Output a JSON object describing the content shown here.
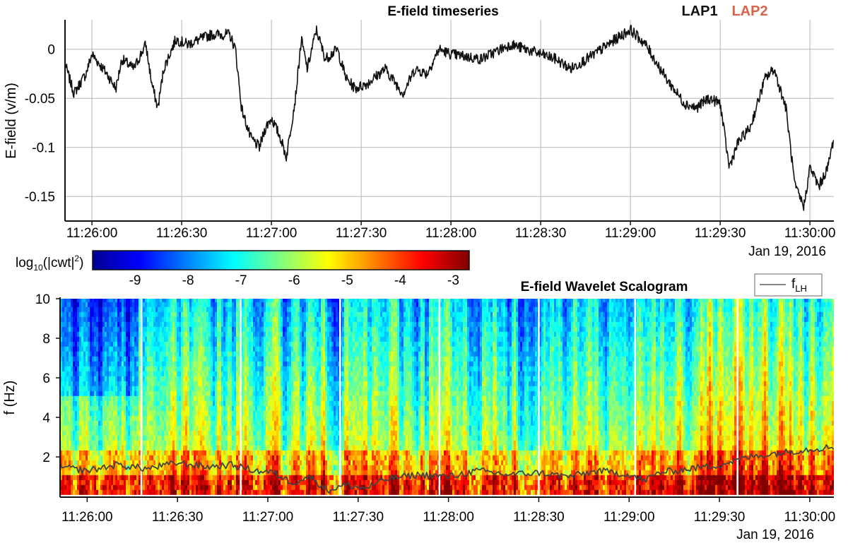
{
  "chart_data": [
    {
      "type": "line",
      "title": "E-field timeseries",
      "xlabel": "",
      "ylabel": "E-field (v/m)",
      "x_ticks": [
        "11:26:00",
        "11:26:30",
        "11:27:00",
        "11:27:30",
        "11:28:00",
        "11:28:30",
        "11:29:00",
        "11:29:30",
        "11:30:00"
      ],
      "y_ticks": [
        "0",
        "-0.05",
        "-0.1",
        "-0.15"
      ],
      "y_tick_values": [
        0,
        -0.05,
        -0.1,
        -0.15
      ],
      "ylim": [
        -0.175,
        0.03
      ],
      "x_range": [
        "11:25:51",
        "11:30:08"
      ],
      "date_label": "Jan 19, 2016",
      "grid": true,
      "legend": [
        "LAP1",
        "LAP2"
      ],
      "legend_colors": [
        "#111111",
        "#d9624a"
      ],
      "legend_position": "top-right",
      "series": [
        {
          "name": "LAP1",
          "color": "#111111",
          "x": [
            "11:25:51",
            "11:25:54",
            "11:25:58",
            "11:26:00",
            "11:26:05",
            "11:26:08",
            "11:26:10",
            "11:26:14",
            "11:26:18",
            "11:26:20",
            "11:26:22",
            "11:26:24",
            "11:26:28",
            "11:26:32",
            "11:26:40",
            "11:26:46",
            "11:26:48",
            "11:26:50",
            "11:26:53",
            "11:26:56",
            "11:26:58",
            "11:27:00",
            "11:27:03",
            "11:27:05",
            "11:27:08",
            "11:27:10",
            "11:27:12",
            "11:27:15",
            "11:27:18",
            "11:27:22",
            "11:27:25",
            "11:27:28",
            "11:27:32",
            "11:27:38",
            "11:27:44",
            "11:27:48",
            "11:27:52",
            "11:27:56",
            "11:28:00",
            "11:28:10",
            "11:28:20",
            "11:28:30",
            "11:28:35",
            "11:28:40",
            "11:28:48",
            "11:28:55",
            "11:29:00",
            "11:29:05",
            "11:29:12",
            "11:29:18",
            "11:29:22",
            "11:29:26",
            "11:29:30",
            "11:29:33",
            "11:29:36",
            "11:29:40",
            "11:29:45",
            "11:29:48",
            "11:29:52",
            "11:29:55",
            "11:29:58",
            "11:30:00",
            "11:30:03",
            "11:30:06",
            "11:30:08"
          ],
          "values": [
            -0.015,
            -0.045,
            -0.025,
            -0.005,
            -0.025,
            -0.04,
            -0.01,
            -0.02,
            0.005,
            -0.035,
            -0.06,
            -0.02,
            0.01,
            0.005,
            0.015,
            0.015,
            0.0,
            -0.06,
            -0.09,
            -0.1,
            -0.08,
            -0.07,
            -0.09,
            -0.11,
            -0.05,
            0.01,
            -0.02,
            0.02,
            -0.01,
            0.0,
            -0.03,
            -0.04,
            -0.035,
            -0.02,
            -0.045,
            -0.02,
            -0.025,
            0.0,
            -0.005,
            -0.01,
            0.005,
            -0.005,
            -0.01,
            -0.02,
            -0.005,
            0.01,
            0.02,
            0.005,
            -0.03,
            -0.055,
            -0.06,
            -0.05,
            -0.055,
            -0.12,
            -0.095,
            -0.08,
            -0.03,
            -0.02,
            -0.06,
            -0.14,
            -0.16,
            -0.12,
            -0.14,
            -0.12,
            -0.09
          ]
        }
      ]
    },
    {
      "type": "heatmap",
      "title": "E-field Wavelet Scalogram",
      "xlabel": "",
      "ylabel": "f (Hz)",
      "x_ticks": [
        "11:26:00",
        "11:26:30",
        "11:27:00",
        "11:27:30",
        "11:28:00",
        "11:28:30",
        "11:29:00",
        "11:29:30",
        "11:30:00"
      ],
      "y_ticks": [
        "10",
        "8",
        "6",
        "4",
        "2"
      ],
      "y_tick_values": [
        10,
        8,
        6,
        4,
        2
      ],
      "ylim": [
        0,
        10
      ],
      "x_range": [
        "11:25:51",
        "11:30:08"
      ],
      "date_label": "Jan 19, 2016",
      "colorbar": {
        "label_main": "log",
        "label_sub": "10",
        "label_rest": "(|cwt|",
        "label_sup": "2",
        "label_end": ")",
        "range": [
          -9.8,
          -2.7
        ],
        "ticks": [
          "-9",
          "-8",
          "-7",
          "-6",
          "-5",
          "-4",
          "-3"
        ],
        "tick_values": [
          -9,
          -8,
          -7,
          -6,
          -5,
          -4,
          -3
        ],
        "colors": [
          "#00008f",
          "#0000ff",
          "#0080ff",
          "#00ffff",
          "#80ff80",
          "#ffff00",
          "#ff8000",
          "#ff0000",
          "#800000"
        ]
      },
      "legend": {
        "label_main": "f",
        "label_sub": "LH",
        "color": "#555555",
        "position": "top-right"
      },
      "segment_boundaries": [
        "11:26:18",
        "11:26:51",
        "11:27:24",
        "11:27:57",
        "11:28:30",
        "11:29:02",
        "11:29:36"
      ],
      "f_LH": {
        "x": [
          "11:25:51",
          "11:26:00",
          "11:26:10",
          "11:26:20",
          "11:26:30",
          "11:26:40",
          "11:26:48",
          "11:26:56",
          "11:27:02",
          "11:27:08",
          "11:27:14",
          "11:27:20",
          "11:27:26",
          "11:27:32",
          "11:27:40",
          "11:27:50",
          "11:28:00",
          "11:28:10",
          "11:28:20",
          "11:28:30",
          "11:28:40",
          "11:28:50",
          "11:29:00",
          "11:29:05",
          "11:29:10",
          "11:29:20",
          "11:29:30",
          "11:29:40",
          "11:29:50",
          "11:30:00",
          "11:30:08"
        ],
        "values": [
          1.5,
          1.3,
          1.6,
          1.4,
          1.7,
          1.5,
          1.6,
          1.3,
          1.2,
          0.7,
          1.0,
          0.3,
          0.6,
          0.4,
          0.9,
          1.1,
          1.0,
          1.3,
          1.1,
          1.2,
          1.0,
          1.3,
          1.1,
          0.8,
          1.2,
          1.4,
          1.6,
          2.0,
          2.2,
          2.4,
          2.5
        ]
      }
    }
  ]
}
